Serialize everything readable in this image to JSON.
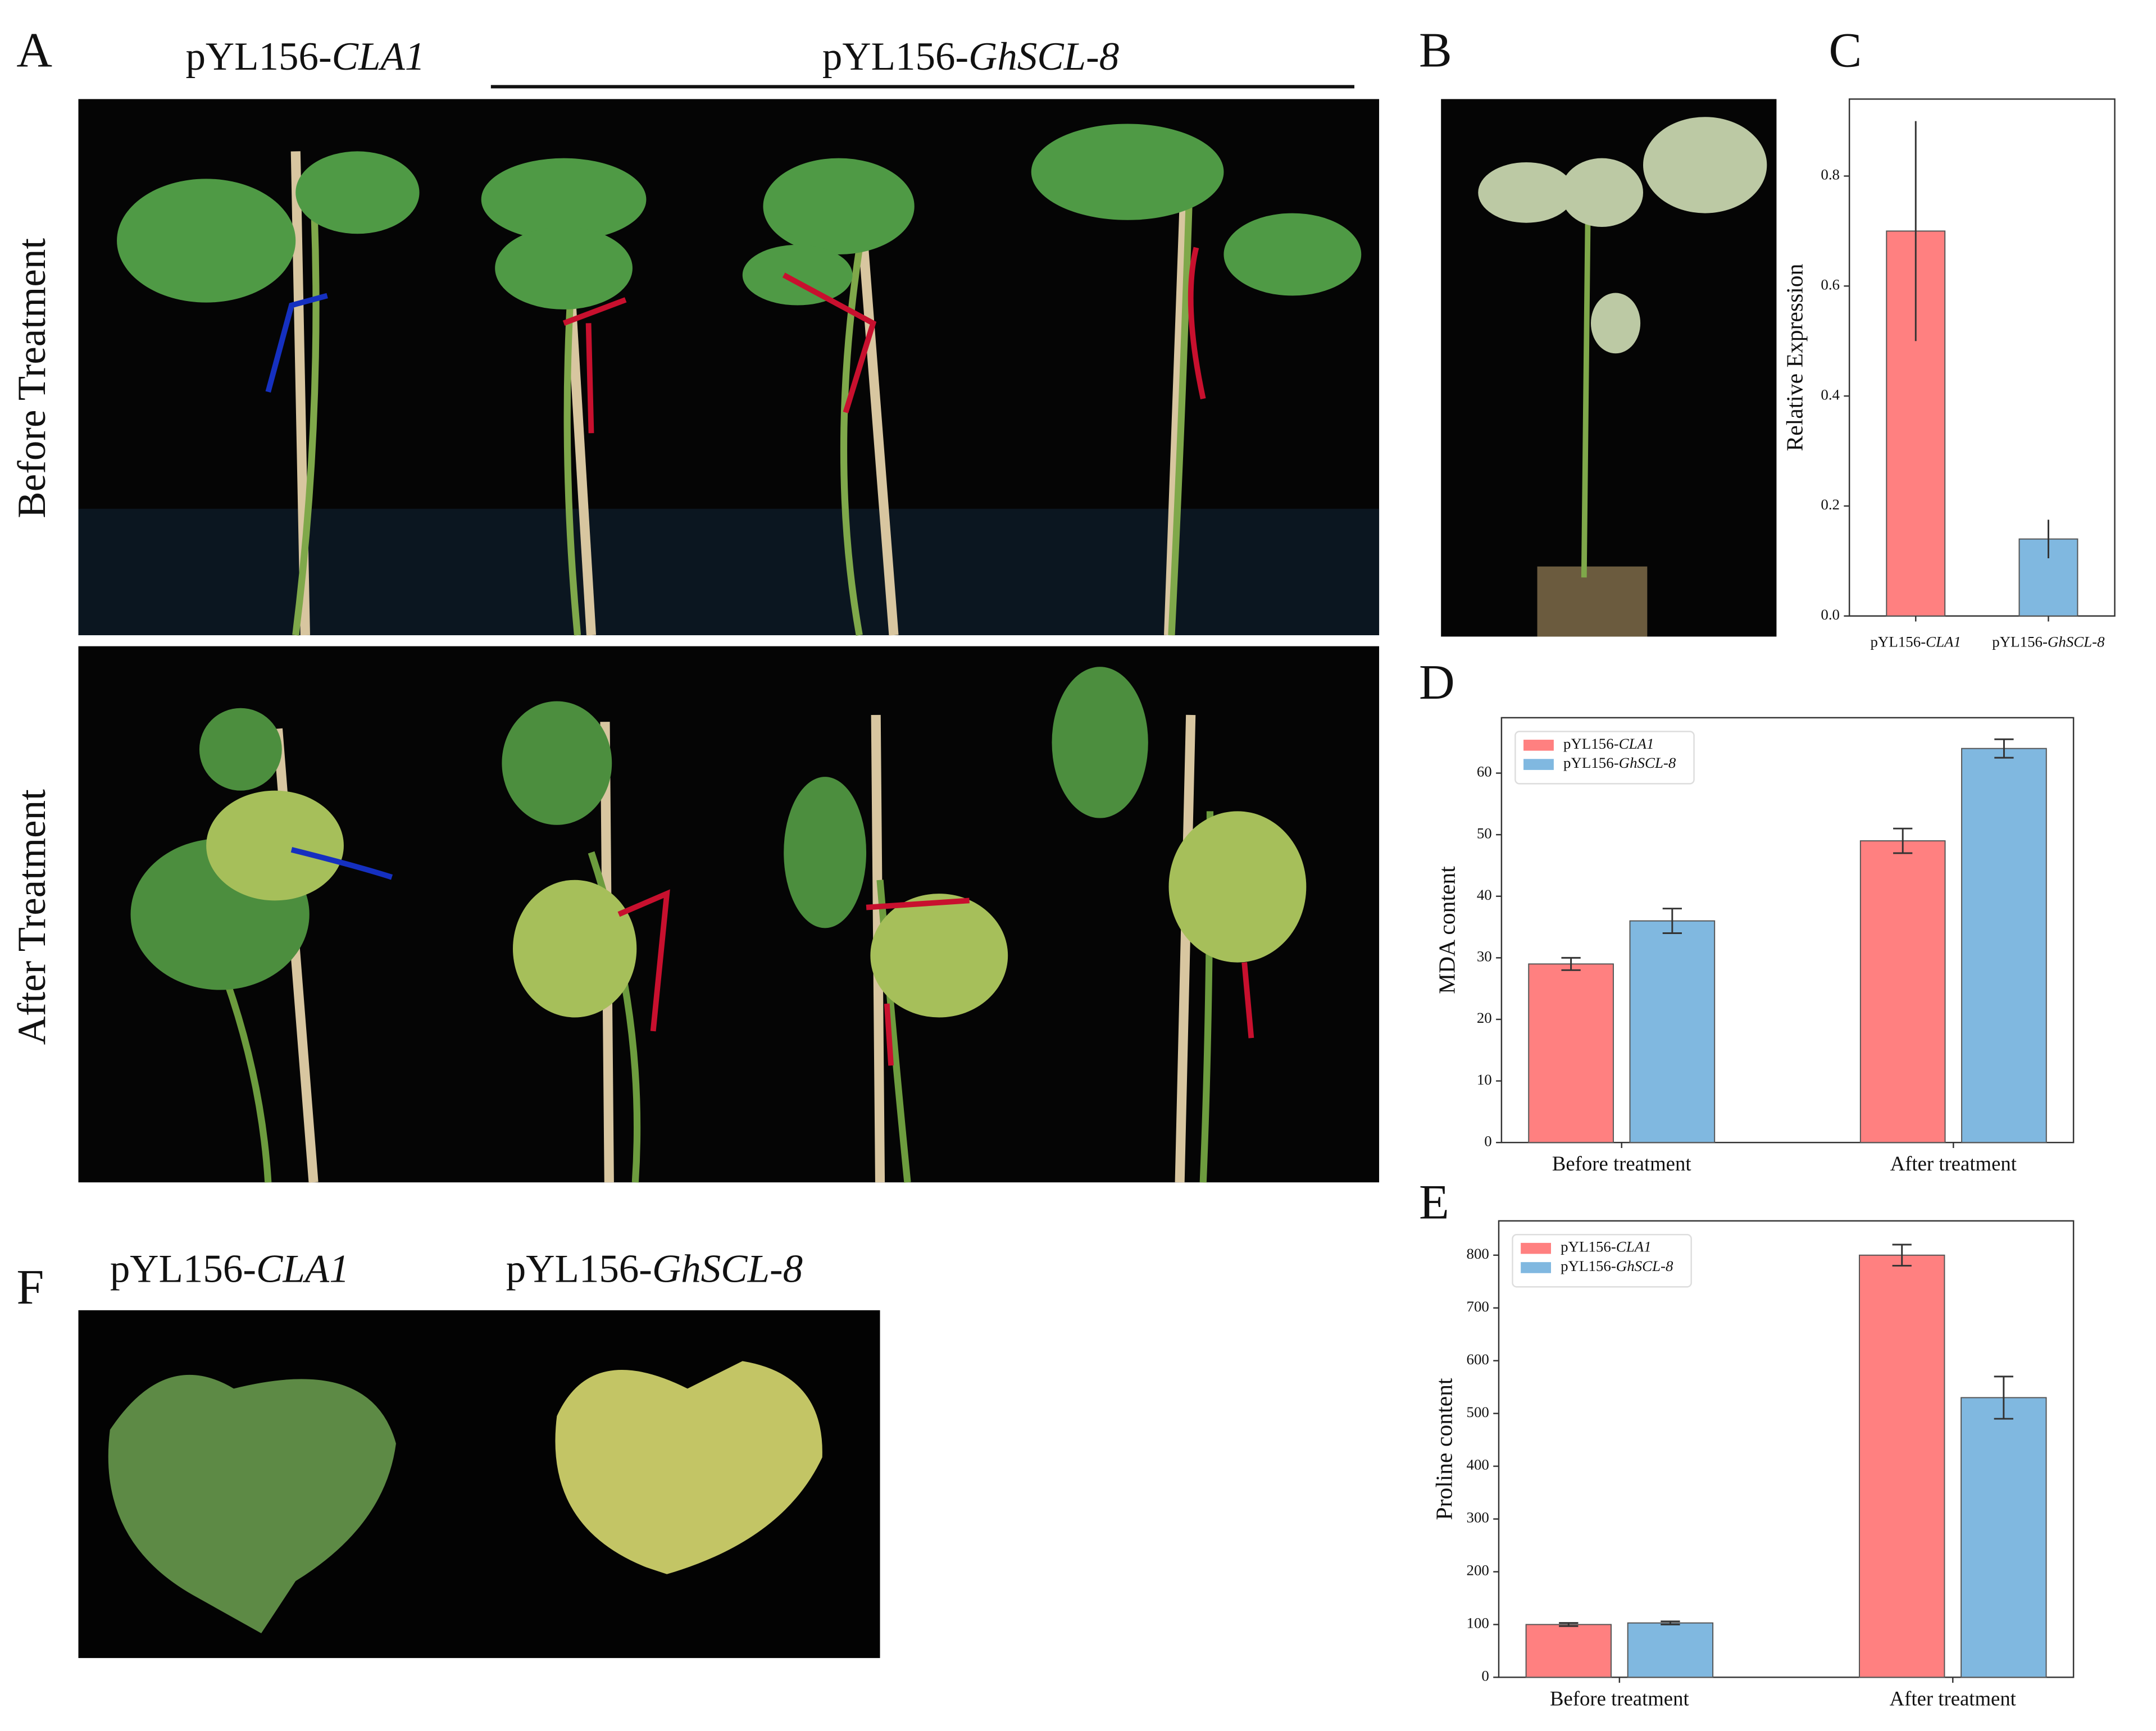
{
  "figure": {
    "panel_labels": [
      "A",
      "B",
      "C",
      "D",
      "E",
      "F"
    ],
    "panel_a": {
      "group_labels": [
        "pYL156-CLA1",
        "pYL156-GhSCL-8"
      ],
      "row_labels": [
        "Before Treatment",
        "After  Treatment"
      ]
    },
    "panel_f": {
      "labels": [
        "pYL156-CLA1",
        "pYL156-GhSCL-8"
      ]
    }
  },
  "chart_data": [
    {
      "type": "bar",
      "ylabel": "Relative Expression",
      "categories": [
        "pYL156-CLA1",
        "pYL156-GhSCL-8"
      ],
      "values": [
        0.7,
        0.14
      ],
      "errors": [
        0.2,
        0.035
      ],
      "colors": [
        "#ff8080",
        "#80b8e0"
      ],
      "ylim": [
        0,
        0.94
      ],
      "yticks": [
        {
          "value": 0,
          "label": "0.0"
        },
        {
          "value": 0.2,
          "label": "0.2"
        },
        {
          "value": 0.4,
          "label": "0.4"
        },
        {
          "value": 0.6,
          "label": "0.6"
        },
        {
          "value": 0.8,
          "label": "0.8"
        }
      ]
    },
    {
      "type": "grouped_bar",
      "ylabel": "MDA content",
      "categories": [
        "Before treatment",
        "After treatment"
      ],
      "series": [
        {
          "name": "pYL156-CLA1",
          "color": "#ff8080",
          "values": [
            29,
            49
          ],
          "errors": [
            1,
            2
          ]
        },
        {
          "name": "pYL156-GhSCL-8",
          "color": "#80b8e0",
          "values": [
            36,
            64
          ],
          "errors": [
            2,
            1.5
          ]
        }
      ],
      "ylim": [
        0,
        69
      ],
      "yticks": [
        0,
        10,
        20,
        30,
        40,
        50,
        60
      ],
      "legend": "upper left"
    },
    {
      "type": "grouped_bar",
      "ylabel": "Proline content",
      "categories": [
        "Before treatment",
        "After treatment"
      ],
      "series": [
        {
          "name": "pYL156-CLA1",
          "color": "#ff8080",
          "values": [
            100,
            800
          ],
          "errors": [
            3,
            20
          ]
        },
        {
          "name": "pYL156-GhSCL-8",
          "color": "#80b8e0",
          "values": [
            103,
            530
          ],
          "errors": [
            3,
            40
          ]
        }
      ],
      "ylim": [
        0,
        865
      ],
      "yticks": [
        0,
        100,
        200,
        300,
        400,
        500,
        600,
        700,
        800
      ],
      "legend": "upper left"
    }
  ]
}
